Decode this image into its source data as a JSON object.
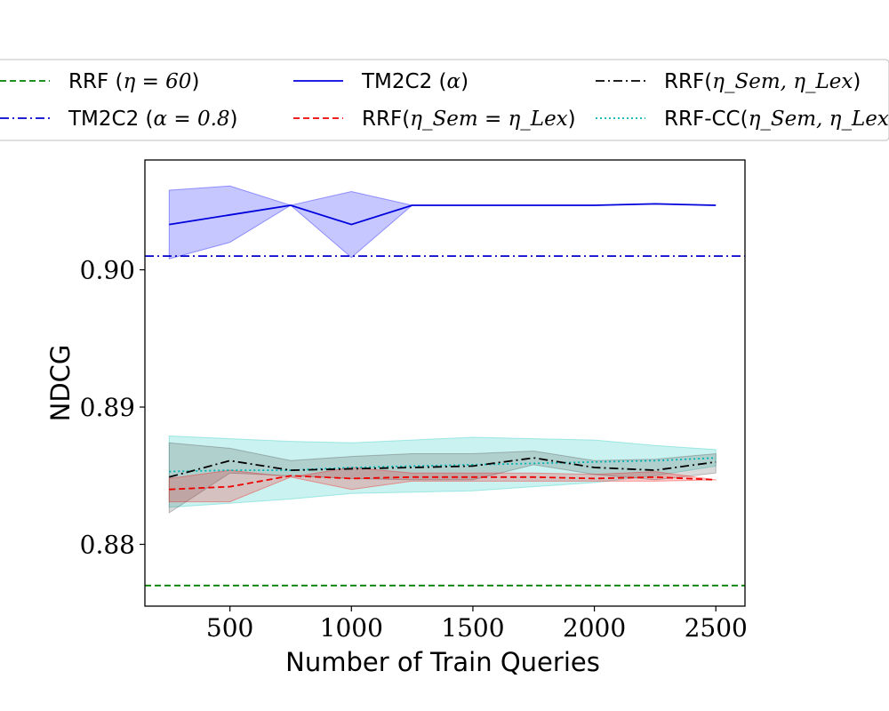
{
  "chart_data": {
    "type": "line",
    "title": "",
    "xlabel": "Number of Train Queries",
    "ylabel": "NDCG",
    "xlim": [
      150,
      2620
    ],
    "ylim": [
      0.8755,
      0.908
    ],
    "xticks": [
      500,
      1000,
      1500,
      2000,
      2500
    ],
    "xtick_labels": [
      "500",
      "1000",
      "1500",
      "2000",
      "2500"
    ],
    "yticks": [
      0.88,
      0.89,
      0.9
    ],
    "ytick_labels": [
      "0.88",
      "0.89",
      "0.90"
    ],
    "grid": false,
    "legend": {
      "placement": "top",
      "columns": 3,
      "entries": [
        {
          "key": "rrf60",
          "label_pre": "RRF (",
          "math": "η = 60",
          "label_post": ")",
          "color": "#008000",
          "dash": "dashed"
        },
        {
          "key": "tm2c2_08",
          "label_pre": "TM2C2 (",
          "math": "α = 0.8",
          "label_post": ")",
          "color": "#0000cc",
          "dash": "dashdot"
        },
        {
          "key": "tm2c2_alpha",
          "label_pre": "TM2C2 (",
          "math": "α",
          "label_post": ")",
          "color": "#0000dd",
          "dash": "solid"
        },
        {
          "key": "rrf_eq",
          "label_pre": "RRF(",
          "math": "η_Sem = η_Lex",
          "label_post": ")",
          "color": "#ee0000",
          "dash": "dashed"
        },
        {
          "key": "rrf_sem_lex",
          "label_pre": "RRF(",
          "math": "η_Sem, η_Lex",
          "label_post": ")",
          "color": "#000000",
          "dash": "dashdot"
        },
        {
          "key": "rrf_cc",
          "label_pre": "RRF-CC(",
          "math": "η_Sem, η_Lex, α",
          "label_post": ")",
          "color": "#00b3b3",
          "dash": "dotted"
        }
      ]
    },
    "hlines": [
      {
        "key": "rrf60",
        "y": 0.877,
        "color": "#008000",
        "dash": "dashed"
      },
      {
        "key": "tm2c2_08",
        "y": 0.901,
        "color": "#0000cc",
        "dash": "dashdot"
      }
    ],
    "x": [
      250,
      500,
      750,
      1000,
      1250,
      1500,
      1750,
      2000,
      2250,
      2500
    ],
    "series": [
      {
        "key": "tm2c2_alpha",
        "name": "TM2C2 (α)",
        "color": "#0000dd",
        "dash": "solid",
        "band_color": "#0000ff",
        "band_opacity": 0.22,
        "values": [
          0.9033,
          0.904,
          0.9047,
          0.9033,
          0.9047,
          0.9047,
          0.9047,
          0.9047,
          0.9048,
          0.9047
        ],
        "upper": [
          0.9058,
          0.9061,
          0.9047,
          0.9057,
          0.9047,
          0.9047,
          0.9047,
          0.9047,
          0.9048,
          0.9047
        ],
        "lower": [
          0.9008,
          0.902,
          0.9047,
          0.9009,
          0.9047,
          0.9047,
          0.9047,
          0.9047,
          0.9048,
          0.9047
        ]
      },
      {
        "key": "rrf_cc",
        "name": "RRF-CC(η_Sem, η_Lex, α)",
        "color": "#00b3b3",
        "dash": "dotted",
        "band_color": "#40d0c8",
        "band_opacity": 0.28,
        "values": [
          0.8853,
          0.8854,
          0.8854,
          0.8856,
          0.8857,
          0.8858,
          0.8859,
          0.886,
          0.8861,
          0.8863
        ],
        "upper": [
          0.8879,
          0.8877,
          0.8875,
          0.8874,
          0.8876,
          0.8878,
          0.8877,
          0.8876,
          0.8872,
          0.8869
        ],
        "lower": [
          0.8827,
          0.883,
          0.8833,
          0.8837,
          0.8838,
          0.8839,
          0.8842,
          0.8845,
          0.885,
          0.8857
        ]
      },
      {
        "key": "rrf_sem_lex",
        "name": "RRF(η_Sem, η_Lex)",
        "color": "#000000",
        "dash": "dashdot",
        "band_color": "#555555",
        "band_opacity": 0.22,
        "values": [
          0.8849,
          0.8861,
          0.8854,
          0.8855,
          0.8856,
          0.8857,
          0.8863,
          0.8856,
          0.8854,
          0.886
        ],
        "upper": [
          0.8874,
          0.887,
          0.8861,
          0.8864,
          0.8866,
          0.8866,
          0.8868,
          0.8861,
          0.8862,
          0.8866
        ],
        "lower": [
          0.8823,
          0.8852,
          0.885,
          0.8848,
          0.8847,
          0.8847,
          0.8858,
          0.8851,
          0.8847,
          0.8852
        ]
      },
      {
        "key": "rrf_eq",
        "name": "RRF(η_Sem = η_Lex)",
        "color": "#ee0000",
        "dash": "dashed",
        "band_color": "#ff0000",
        "band_opacity": 0.2,
        "values": [
          0.884,
          0.8842,
          0.885,
          0.8848,
          0.8849,
          0.8849,
          0.8849,
          0.8848,
          0.8849,
          0.8847
        ],
        "upper": [
          0.8848,
          0.8854,
          0.8849,
          0.8856,
          0.8852,
          0.8852,
          0.8852,
          0.8851,
          0.8853,
          0.8847
        ],
        "lower": [
          0.8831,
          0.8831,
          0.8849,
          0.884,
          0.8846,
          0.8846,
          0.8846,
          0.8846,
          0.8846,
          0.8847
        ]
      }
    ]
  }
}
